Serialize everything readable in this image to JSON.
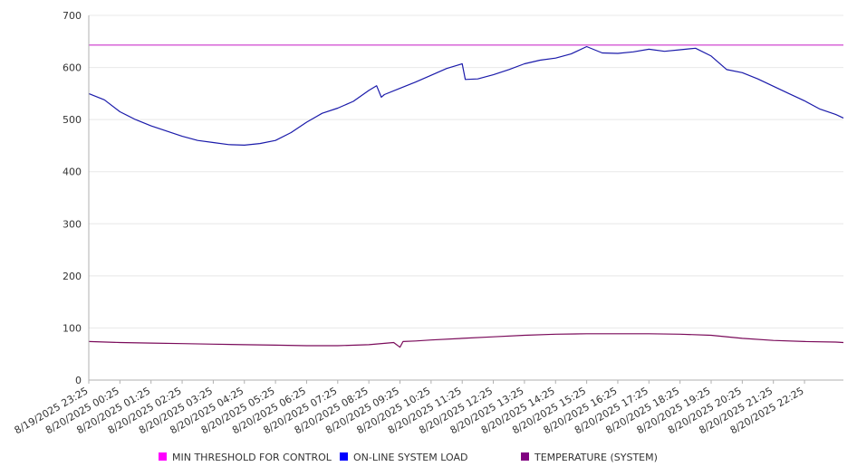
{
  "chart_data": {
    "type": "line",
    "title": "",
    "xlabel": "",
    "ylabel": "",
    "ylim": [
      0,
      700
    ],
    "yticks": [
      0,
      100,
      200,
      300,
      400,
      500,
      600,
      700
    ],
    "grid": true,
    "legend_position": "bottom",
    "x_tick_labels": [
      "8/19/2025 23:25",
      "8/20/2025 00:25",
      "8/20/2025 01:25",
      "8/20/2025 02:25",
      "8/20/2025 03:25",
      "8/20/2025 04:25",
      "8/20/2025 05:25",
      "8/20/2025 06:25",
      "8/20/2025 07:25",
      "8/20/2025 08:25",
      "8/20/2025 09:25",
      "8/20/2025 10:25",
      "8/20/2025 11:25",
      "8/20/2025 12:25",
      "8/20/2025 13:25",
      "8/20/2025 14:25",
      "8/20/2025 15:25",
      "8/20/2025 16:25",
      "8/20/2025 17:25",
      "8/20/2025 18:25",
      "8/20/2025 19:25",
      "8/20/2025 20:25",
      "8/20/2025 21:25",
      "8/20/2025 22:25"
    ],
    "x_range_hours": [
      0,
      24.25
    ],
    "series": [
      {
        "name": "MIN THRESHOLD FOR CONTROL",
        "color": "#cc33cc",
        "legend_color": "#ff00ff",
        "x_hours": [
          0,
          24.25
        ],
        "values": [
          643,
          643
        ]
      },
      {
        "name": "ON-LINE SYSTEM LOAD",
        "color": "#1a1aaa",
        "legend_color": "#0000ff",
        "x_hours": [
          0,
          0.5,
          1.0,
          1.5,
          2.0,
          2.5,
          3.0,
          3.5,
          4.0,
          4.5,
          5.0,
          5.5,
          6.0,
          6.5,
          7.0,
          7.5,
          8.0,
          8.5,
          9.0,
          9.25,
          9.4,
          9.5,
          10.0,
          10.5,
          11.0,
          11.5,
          12.0,
          12.1,
          12.5,
          13.0,
          13.5,
          14.0,
          14.5,
          15.0,
          15.5,
          16.0,
          16.5,
          17.0,
          17.5,
          18.0,
          18.5,
          19.0,
          19.5,
          20.0,
          20.5,
          21.0,
          21.5,
          22.0,
          22.5,
          23.0,
          23.5,
          24.0,
          24.25
        ],
        "values": [
          550,
          538,
          515,
          500,
          488,
          478,
          468,
          460,
          456,
          452,
          451,
          454,
          460,
          475,
          495,
          512,
          522,
          535,
          556,
          565,
          543,
          548,
          560,
          572,
          585,
          598,
          607,
          577,
          578,
          586,
          596,
          607,
          614,
          618,
          626,
          640,
          628,
          627,
          630,
          635,
          631,
          634,
          637,
          622,
          596,
          590,
          578,
          564,
          550,
          536,
          520,
          510,
          503
        ]
      },
      {
        "name": "TEMPERATURE (SYSTEM)",
        "color": "#7a0a5a",
        "legend_color": "#800080",
        "x_hours": [
          0,
          1,
          2,
          3,
          4,
          5,
          6,
          7,
          8,
          9,
          9.8,
          10,
          10.1,
          10.5,
          11,
          12,
          13,
          14,
          15,
          16,
          17,
          18,
          19,
          20,
          21,
          22,
          23,
          24,
          24.25
        ],
        "values": [
          74,
          72,
          71,
          70,
          69,
          68,
          67,
          66,
          66,
          68,
          72,
          63,
          74,
          75,
          77,
          80,
          83,
          86,
          88,
          89,
          89,
          89,
          88,
          86,
          80,
          76,
          74,
          73,
          72
        ]
      }
    ]
  }
}
